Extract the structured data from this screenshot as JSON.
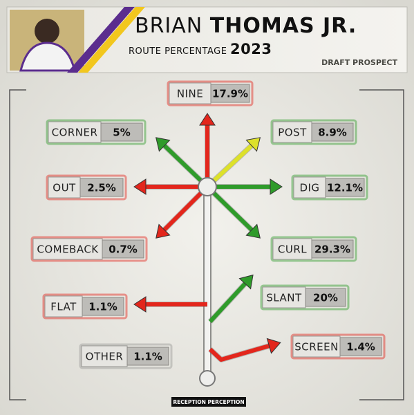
{
  "header": {
    "first_name": "BRIAN",
    "last_name": "THOMAS JR.",
    "subtitle": "ROUTE PERCENTAGE",
    "year": "2023",
    "tag": "DRAFT PROSPECT"
  },
  "routes": [
    {
      "name": "NINE",
      "value": "17.9%"
    },
    {
      "name": "CORNER",
      "value": "5%"
    },
    {
      "name": "POST",
      "value": "8.9%"
    },
    {
      "name": "OUT",
      "value": "2.5%"
    },
    {
      "name": "DIG",
      "value": "12.1%"
    },
    {
      "name": "COMEBACK",
      "value": "0.7%"
    },
    {
      "name": "CURL",
      "value": "29.3%"
    },
    {
      "name": "FLAT",
      "value": "1.1%"
    },
    {
      "name": "SLANT",
      "value": "20%"
    },
    {
      "name": "OTHER",
      "value": "1.1%"
    },
    {
      "name": "SCREEN",
      "value": "1.4%"
    }
  ],
  "footer": {
    "logo": "RECEPTION PERCEPTION"
  }
}
